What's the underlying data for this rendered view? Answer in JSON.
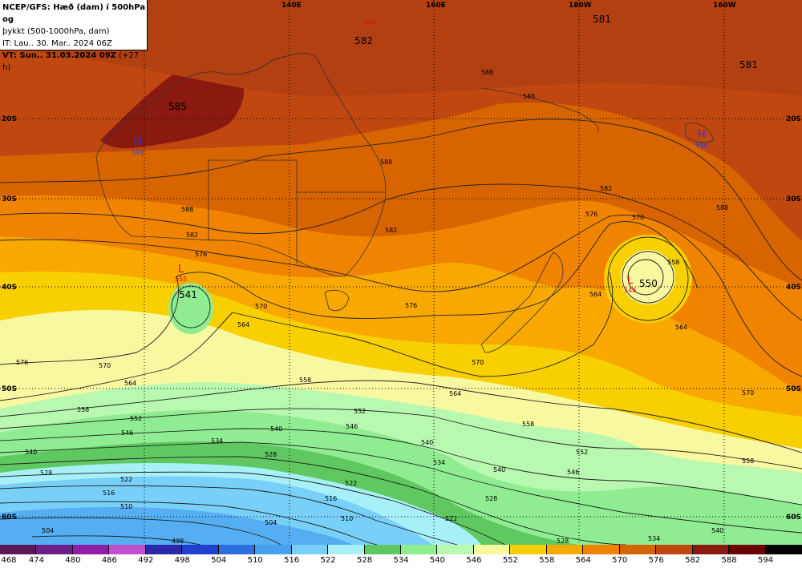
{
  "info": {
    "line1": "NCEP/GFS: Hæð (dam) í 500hPa og",
    "line2": "þykkt (500-1000hPa, dam)",
    "line3": "IT: Lau.. 30. Mar.. 2024 06Z",
    "line4": "VT: Sun.. 31.03.2024 09Z",
    "line4b": "(+27 h)"
  },
  "longitude_labels": [
    "140E",
    "160E",
    "180W",
    "160W"
  ],
  "latitude_labels": [
    "20S",
    "30S",
    "40S",
    "50S",
    "60S"
  ],
  "colorbar": {
    "labels": [
      "468",
      "474",
      "480",
      "486",
      "492",
      "498",
      "504",
      "510",
      "516",
      "522",
      "528",
      "534",
      "540",
      "546",
      "552",
      "558",
      "564",
      "570",
      "576",
      "582",
      "588",
      "594"
    ],
    "colors": [
      "#5a1a5a",
      "#6e1f86",
      "#8f1fa6",
      "#c050d0",
      "#2828a8",
      "#2040d0",
      "#2e6ee0",
      "#46a0f0",
      "#78d0f8",
      "#a8f0f8",
      "#60c860",
      "#90ec90",
      "#b8f8b0",
      "#f8f8a0",
      "#f8d000",
      "#f8a800",
      "#f08400",
      "#d86400",
      "#c04810",
      "#8a1a10",
      "#6a0000",
      "#000000"
    ]
  },
  "centers": {
    "high_w": {
      "letter": "H",
      "value": "593"
    },
    "high_e": {
      "letter": "H",
      "value": "594"
    },
    "low_w": {
      "letter": "L",
      "value": "555"
    },
    "low_e": {
      "letter": "L",
      "value": "548"
    },
    "low_n_value": "582"
  },
  "contour_labels": {
    "c585": "585",
    "c582top": "582",
    "c581a": "581",
    "c581b": "581",
    "c541": "541",
    "c550": "550",
    "l588a": "588",
    "l588b": "588",
    "l588c": "588",
    "l588d": "588",
    "l588e": "588",
    "l582a": "582",
    "l582b": "582",
    "l582c": "582",
    "l576a": "576",
    "l576b": "576",
    "l576c": "576",
    "l576d": "576",
    "l570a": "570",
    "l570b": "570",
    "l570c": "570",
    "l570d": "570",
    "l570e": "570",
    "l564a": "564",
    "l564b": "564",
    "l564c": "564",
    "l564d": "564",
    "l564e": "564",
    "l558a": "558",
    "l558b": "558",
    "l558c": "558",
    "l558d": "558",
    "l558e": "558",
    "l552a": "552",
    "l552b": "552",
    "l552c": "552",
    "l546a": "546",
    "l546b": "546",
    "l546c": "546",
    "l540a": "540",
    "l540b": "540",
    "l540c": "540",
    "l540d": "540",
    "l540e": "540",
    "l534a": "534",
    "l534b": "534",
    "l534c": "534",
    "l528a": "528",
    "l528b": "528",
    "l528c": "528",
    "l528d": "528",
    "l522a": "522",
    "l522b": "522",
    "l522c": "522",
    "l516a": "516",
    "l516b": "516",
    "l510a": "510",
    "l510b": "510",
    "l504a": "504",
    "l504b": "504",
    "l498a": "498",
    "l564e2": "564",
    "l558n": "558",
    "l564n": "564",
    "l576n": "576"
  }
}
